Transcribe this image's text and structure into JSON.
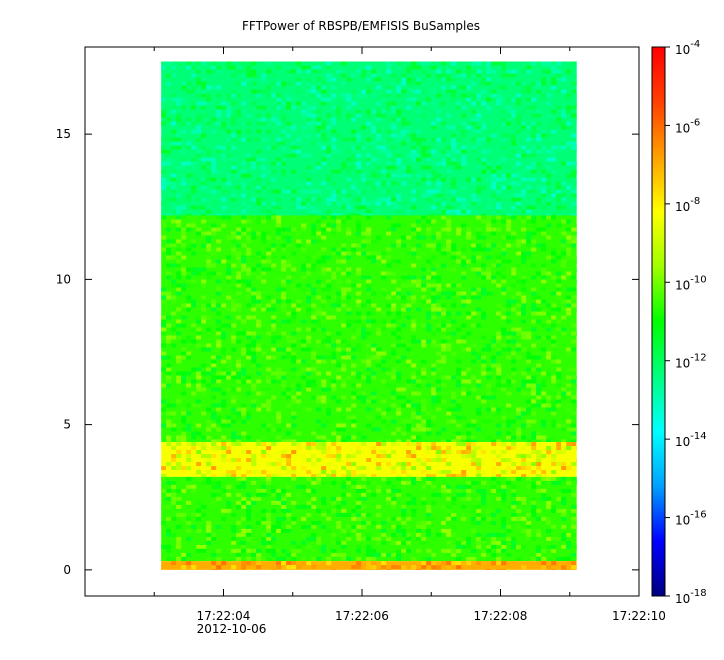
{
  "chart_data": {
    "type": "heatmap",
    "title": "FFTPower of RBSPB/EMFISIS  BuSamples",
    "xlabel": "",
    "ylabel": "",
    "x_ticks": [
      {
        "label": "17:22:04",
        "sub": "2012-10-06",
        "t": 4
      },
      {
        "label": "17:22:06",
        "t": 6
      },
      {
        "label": "17:22:08",
        "t": 8
      },
      {
        "label": "17:22:10",
        "t": 10
      }
    ],
    "x_minor_ticks": [
      3,
      5,
      7,
      9
    ],
    "xlim": [
      2.0,
      10.0
    ],
    "y_ticks": [
      {
        "label": "0",
        "v": 0
      },
      {
        "label": "5",
        "v": 5
      },
      {
        "label": "10",
        "v": 10
      },
      {
        "label": "15",
        "v": 15
      }
    ],
    "ylim": [
      -0.9,
      18.0
    ],
    "data_extent": {
      "x": [
        3.1,
        9.1
      ],
      "y": [
        0.0,
        17.5
      ]
    },
    "color_scale": {
      "log": true,
      "range_exp": [
        -18,
        -4
      ],
      "tick_exps": [
        -4,
        -6,
        -8,
        -10,
        -12,
        -14,
        -16,
        -18
      ],
      "tick_base": "10",
      "colors": [
        "#000080",
        "#0000ff",
        "#00a0ff",
        "#00ffff",
        "#00ff80",
        "#00ff00",
        "#a0ff00",
        "#ffff00",
        "#ffa000",
        "#ff4000",
        "#ff0000"
      ]
    },
    "bands": [
      {
        "y": [
          12.2,
          17.5
        ],
        "log_power": -12.3,
        "desc": "upper band"
      },
      {
        "y": [
          4.4,
          12.2
        ],
        "log_power": -10.6,
        "desc": "middle band"
      },
      {
        "y": [
          3.2,
          4.4
        ],
        "log_power": -8.3,
        "desc": "enhanced band"
      },
      {
        "y": [
          0.3,
          3.2
        ],
        "log_power": -10.6,
        "desc": "lower band"
      },
      {
        "y": [
          0.0,
          0.3
        ],
        "log_power": -7.0,
        "desc": "dc line"
      }
    ]
  }
}
